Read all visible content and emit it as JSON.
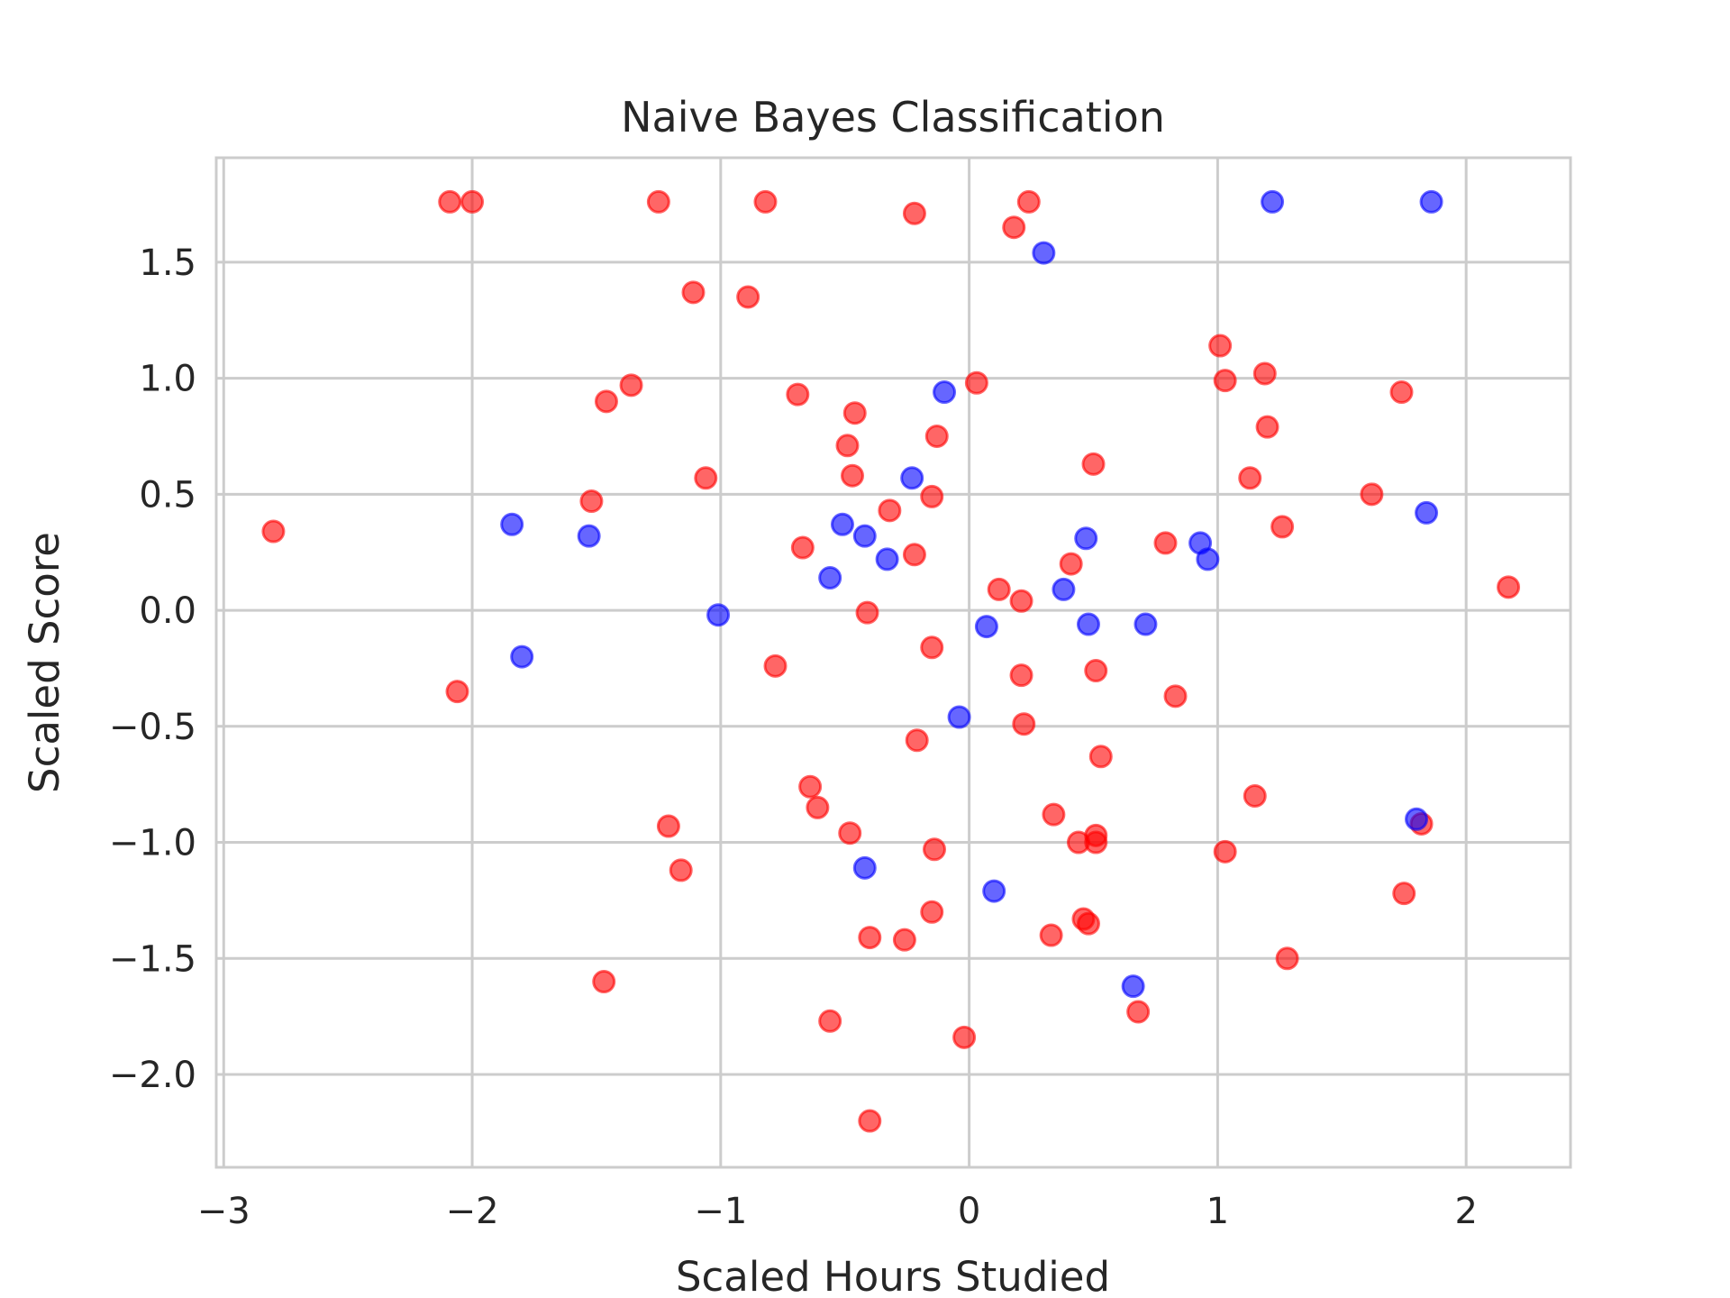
{
  "chart_data": {
    "type": "scatter",
    "title": "Naive Bayes Classification",
    "xlabel": "Scaled Hours Studied",
    "ylabel": "Scaled Score",
    "xlim": [
      -3.03,
      2.42
    ],
    "ylim": [
      -2.4,
      1.95
    ],
    "xticks": [
      -3,
      -2,
      -1,
      0,
      1,
      2
    ],
    "yticks": [
      -2.0,
      -1.5,
      -1.0,
      -0.5,
      0.0,
      0.5,
      1.0,
      1.5
    ],
    "xtick_labels": [
      "−3",
      "−2",
      "−1",
      "0",
      "1",
      "2"
    ],
    "ytick_labels": [
      "−2.0",
      "−1.5",
      "−1.0",
      "−0.5",
      "0.0",
      "0.5",
      "1.0",
      "1.5"
    ],
    "grid": true,
    "series": [
      {
        "color": "#ff0000",
        "points": [
          [
            -2.8,
            0.34
          ],
          [
            -2.09,
            1.76
          ],
          [
            -2.0,
            1.76
          ],
          [
            -2.06,
            -0.35
          ],
          [
            -1.52,
            0.47
          ],
          [
            -1.46,
            0.9
          ],
          [
            -1.36,
            0.97
          ],
          [
            -1.47,
            -1.6
          ],
          [
            -1.25,
            1.76
          ],
          [
            -1.11,
            1.37
          ],
          [
            -1.06,
            0.57
          ],
          [
            -1.21,
            -0.93
          ],
          [
            -1.16,
            -1.12
          ],
          [
            -0.89,
            1.35
          ],
          [
            -0.82,
            1.76
          ],
          [
            -0.78,
            -0.24
          ],
          [
            -0.69,
            0.93
          ],
          [
            -0.67,
            0.27
          ],
          [
            -0.64,
            -0.76
          ],
          [
            -0.61,
            -0.85
          ],
          [
            -0.56,
            -1.77
          ],
          [
            -0.49,
            0.71
          ],
          [
            -0.47,
            0.58
          ],
          [
            -0.46,
            0.85
          ],
          [
            -0.48,
            -0.96
          ],
          [
            -0.41,
            -0.01
          ],
          [
            -0.4,
            -1.41
          ],
          [
            -0.4,
            -2.2
          ],
          [
            -0.32,
            0.43
          ],
          [
            -0.26,
            -1.42
          ],
          [
            -0.22,
            1.71
          ],
          [
            -0.22,
            0.24
          ],
          [
            -0.21,
            -0.56
          ],
          [
            -0.15,
            0.49
          ],
          [
            -0.15,
            -0.16
          ],
          [
            -0.14,
            -1.03
          ],
          [
            -0.15,
            -1.3
          ],
          [
            -0.13,
            0.75
          ],
          [
            -0.02,
            -1.84
          ],
          [
            0.03,
            0.98
          ],
          [
            0.12,
            0.09
          ],
          [
            0.18,
            1.65
          ],
          [
            0.24,
            1.76
          ],
          [
            0.21,
            0.04
          ],
          [
            0.21,
            -0.28
          ],
          [
            0.22,
            -0.49
          ],
          [
            0.34,
            -0.88
          ],
          [
            0.33,
            -1.4
          ],
          [
            0.41,
            0.2
          ],
          [
            0.44,
            -1.0
          ],
          [
            0.46,
            -1.33
          ],
          [
            0.48,
            -1.35
          ],
          [
            0.5,
            0.63
          ],
          [
            0.51,
            -0.97
          ],
          [
            0.51,
            -1.0
          ],
          [
            0.51,
            -0.26
          ],
          [
            0.53,
            -0.63
          ],
          [
            0.68,
            -1.73
          ],
          [
            0.79,
            0.29
          ],
          [
            0.83,
            -0.37
          ],
          [
            1.01,
            1.14
          ],
          [
            1.03,
            0.99
          ],
          [
            1.03,
            -1.04
          ],
          [
            1.13,
            0.57
          ],
          [
            1.15,
            -0.8
          ],
          [
            1.19,
            1.02
          ],
          [
            1.2,
            0.79
          ],
          [
            1.26,
            0.36
          ],
          [
            1.28,
            -1.5
          ],
          [
            1.62,
            0.5
          ],
          [
            1.74,
            0.94
          ],
          [
            1.75,
            -1.22
          ],
          [
            1.82,
            -0.92
          ],
          [
            2.17,
            0.1
          ]
        ]
      },
      {
        "color": "#0000ff",
        "points": [
          [
            -1.84,
            0.37
          ],
          [
            -1.8,
            -0.2
          ],
          [
            -1.53,
            0.32
          ],
          [
            -1.01,
            -0.02
          ],
          [
            -0.56,
            0.14
          ],
          [
            -0.51,
            0.37
          ],
          [
            -0.42,
            0.32
          ],
          [
            -0.42,
            -1.11
          ],
          [
            -0.33,
            0.22
          ],
          [
            -0.23,
            0.57
          ],
          [
            -0.1,
            0.94
          ],
          [
            -0.04,
            -0.46
          ],
          [
            0.07,
            -0.07
          ],
          [
            0.1,
            -1.21
          ],
          [
            0.3,
            1.54
          ],
          [
            0.38,
            0.09
          ],
          [
            0.47,
            0.31
          ],
          [
            0.48,
            -0.06
          ],
          [
            0.66,
            -1.62
          ],
          [
            0.71,
            -0.06
          ],
          [
            0.93,
            0.29
          ],
          [
            0.96,
            0.22
          ],
          [
            1.22,
            1.76
          ],
          [
            1.8,
            -0.9
          ],
          [
            1.84,
            0.42
          ],
          [
            1.86,
            1.76
          ]
        ]
      }
    ]
  }
}
